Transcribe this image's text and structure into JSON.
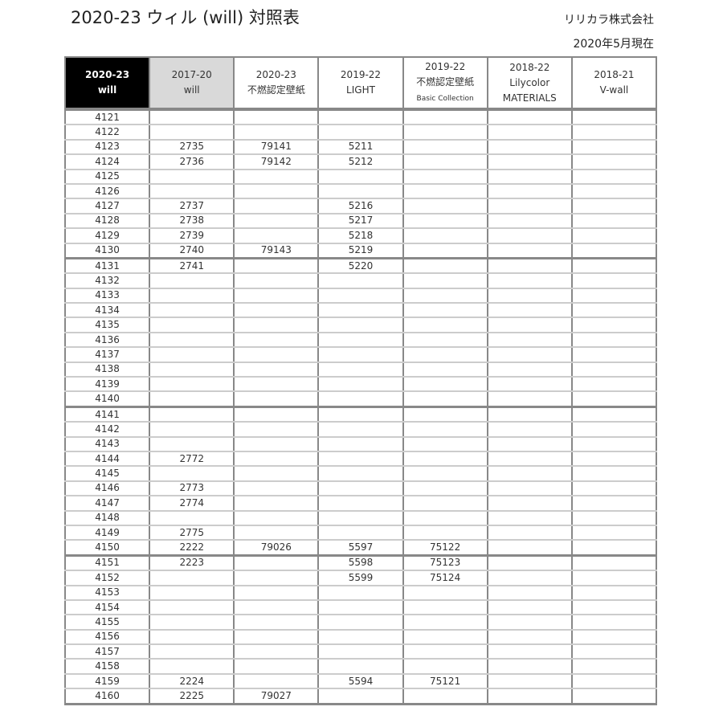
{
  "title": "2020-23 ウィル (will) 対照表",
  "company": "リリカラ株式会社",
  "date": "2020年5月現在",
  "headers": [
    {
      "l1": "2020-23",
      "l2": "will",
      "l3": ""
    },
    {
      "l1": "2017-20",
      "l2": "will",
      "l3": ""
    },
    {
      "l1": "2020-23",
      "l2": "不燃認定壁紙",
      "l3": ""
    },
    {
      "l1": "2019-22",
      "l2": "LIGHT",
      "l3": ""
    },
    {
      "l1": "2019-22",
      "l2": "不燃認定壁紙",
      "l3": "Basic Collection"
    },
    {
      "l1": "2018-22",
      "l2": "Lilycolor",
      "l3": "MATERIALS"
    },
    {
      "l1": "2018-21",
      "l2": "V-wall",
      "l3": ""
    }
  ],
  "rows": [
    [
      "4121",
      "",
      "",
      "",
      "",
      "",
      ""
    ],
    [
      "4122",
      "",
      "",
      "",
      "",
      "",
      ""
    ],
    [
      "4123",
      "2735",
      "79141",
      "5211",
      "",
      "",
      ""
    ],
    [
      "4124",
      "2736",
      "79142",
      "5212",
      "",
      "",
      ""
    ],
    [
      "4125",
      "",
      "",
      "",
      "",
      "",
      ""
    ],
    [
      "4126",
      "",
      "",
      "",
      "",
      "",
      ""
    ],
    [
      "4127",
      "2737",
      "",
      "5216",
      "",
      "",
      ""
    ],
    [
      "4128",
      "2738",
      "",
      "5217",
      "",
      "",
      ""
    ],
    [
      "4129",
      "2739",
      "",
      "5218",
      "",
      "",
      ""
    ],
    [
      "4130",
      "2740",
      "79143",
      "5219",
      "",
      "",
      ""
    ],
    [
      "4131",
      "2741",
      "",
      "5220",
      "",
      "",
      ""
    ],
    [
      "4132",
      "",
      "",
      "",
      "",
      "",
      ""
    ],
    [
      "4133",
      "",
      "",
      "",
      "",
      "",
      ""
    ],
    [
      "4134",
      "",
      "",
      "",
      "",
      "",
      ""
    ],
    [
      "4135",
      "",
      "",
      "",
      "",
      "",
      ""
    ],
    [
      "4136",
      "",
      "",
      "",
      "",
      "",
      ""
    ],
    [
      "4137",
      "",
      "",
      "",
      "",
      "",
      ""
    ],
    [
      "4138",
      "",
      "",
      "",
      "",
      "",
      ""
    ],
    [
      "4139",
      "",
      "",
      "",
      "",
      "",
      ""
    ],
    [
      "4140",
      "",
      "",
      "",
      "",
      "",
      ""
    ],
    [
      "4141",
      "",
      "",
      "",
      "",
      "",
      ""
    ],
    [
      "4142",
      "",
      "",
      "",
      "",
      "",
      ""
    ],
    [
      "4143",
      "",
      "",
      "",
      "",
      "",
      ""
    ],
    [
      "4144",
      "2772",
      "",
      "",
      "",
      "",
      ""
    ],
    [
      "4145",
      "",
      "",
      "",
      "",
      "",
      ""
    ],
    [
      "4146",
      "2773",
      "",
      "",
      "",
      "",
      ""
    ],
    [
      "4147",
      "2774",
      "",
      "",
      "",
      "",
      ""
    ],
    [
      "4148",
      "",
      "",
      "",
      "",
      "",
      ""
    ],
    [
      "4149",
      "2775",
      "",
      "",
      "",
      "",
      ""
    ],
    [
      "4150",
      "2222",
      "79026",
      "5597",
      "75122",
      "",
      ""
    ],
    [
      "4151",
      "2223",
      "",
      "5598",
      "75123",
      "",
      ""
    ],
    [
      "4152",
      "",
      "",
      "5599",
      "75124",
      "",
      ""
    ],
    [
      "4153",
      "",
      "",
      "",
      "",
      "",
      ""
    ],
    [
      "4154",
      "",
      "",
      "",
      "",
      "",
      ""
    ],
    [
      "4155",
      "",
      "",
      "",
      "",
      "",
      ""
    ],
    [
      "4156",
      "",
      "",
      "",
      "",
      "",
      ""
    ],
    [
      "4157",
      "",
      "",
      "",
      "",
      "",
      ""
    ],
    [
      "4158",
      "",
      "",
      "",
      "",
      "",
      ""
    ],
    [
      "4159",
      "2224",
      "",
      "5594",
      "75121",
      "",
      ""
    ],
    [
      "4160",
      "2225",
      "79027",
      "",
      "",
      "",
      ""
    ]
  ]
}
